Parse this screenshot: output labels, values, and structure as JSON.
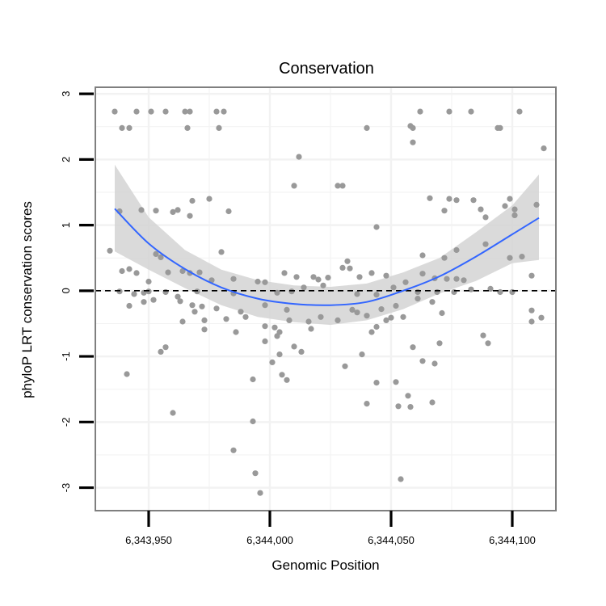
{
  "chart_data": {
    "type": "scatter",
    "title": "Conservation",
    "xlabel": "Genomic Position",
    "ylabel": "phyloP LRT conservation scores",
    "xlim": [
      6343928,
      6344118
    ],
    "ylim": [
      -3.35,
      3.1
    ],
    "x_ticks": [
      6343950,
      6344000,
      6344050,
      6344100
    ],
    "x_tick_labels": [
      "6,343,950",
      "6,344,000",
      "6,344,050",
      "6,344,100"
    ],
    "y_ticks": [
      -3,
      -2,
      -1,
      0,
      1,
      2,
      3
    ],
    "y_tick_labels": [
      "-3",
      "-2",
      "-1",
      "0",
      "1",
      "2",
      "3"
    ],
    "grid": true,
    "reference_line": {
      "y": 0,
      "style": "dashed",
      "color": "#000000"
    },
    "colors": {
      "points": "#999999",
      "smooth": "#3366FF",
      "ribbon": "#D3D3D3",
      "panel_border": "#7F7F7F",
      "grid": "#F2F2F2"
    },
    "smooth": {
      "method": "loess",
      "x": [
        6343936,
        6343950,
        6343965,
        6343980,
        6343995,
        6344010,
        6344025,
        6344040,
        6344055,
        6344070,
        6344085,
        6344100,
        6344111
      ],
      "y": [
        1.25,
        0.72,
        0.33,
        0.05,
        -0.12,
        -0.2,
        -0.22,
        -0.17,
        0.0,
        0.22,
        0.52,
        0.86,
        1.11
      ],
      "lower": [
        0.6,
        0.32,
        0.04,
        -0.22,
        -0.4,
        -0.48,
        -0.52,
        -0.45,
        -0.28,
        -0.04,
        0.15,
        0.42,
        0.47
      ],
      "upper": [
        1.92,
        1.12,
        0.62,
        0.32,
        0.16,
        0.08,
        0.06,
        0.11,
        0.28,
        0.5,
        0.89,
        1.3,
        1.77
      ]
    },
    "series": [
      {
        "name": "scores",
        "points": [
          [
            6343936,
            2.73
          ],
          [
            6343945,
            2.73
          ],
          [
            6343951,
            2.73
          ],
          [
            6343957,
            2.73
          ],
          [
            6343965,
            2.73
          ],
          [
            6343967,
            2.73
          ],
          [
            6343978,
            2.73
          ],
          [
            6343981,
            2.73
          ],
          [
            6344062,
            2.73
          ],
          [
            6344074,
            2.73
          ],
          [
            6344083,
            2.73
          ],
          [
            6344103,
            2.73
          ],
          [
            6343939,
            2.48
          ],
          [
            6343942,
            2.48
          ],
          [
            6343966,
            2.48
          ],
          [
            6343979,
            2.48
          ],
          [
            6344040,
            2.48
          ],
          [
            6344059,
            2.48
          ],
          [
            6344094,
            2.48
          ],
          [
            6344095,
            2.48
          ],
          [
            6344058,
            2.51
          ],
          [
            6344059,
            2.26
          ],
          [
            6344113,
            2.17
          ],
          [
            6344012,
            2.04
          ],
          [
            6344010,
            1.6
          ],
          [
            6344028,
            1.6
          ],
          [
            6344030,
            1.6
          ],
          [
            6343975,
            1.4
          ],
          [
            6343968,
            1.37
          ],
          [
            6344066,
            1.41
          ],
          [
            6344074,
            1.4
          ],
          [
            6344077,
            1.38
          ],
          [
            6344084,
            1.38
          ],
          [
            6344099,
            1.4
          ],
          [
            6344097,
            1.29
          ],
          [
            6344110,
            1.31
          ],
          [
            6344101,
            1.24
          ],
          [
            6343938,
            1.21
          ],
          [
            6343947,
            1.23
          ],
          [
            6343953,
            1.22
          ],
          [
            6343960,
            1.2
          ],
          [
            6343962,
            1.23
          ],
          [
            6343967,
            1.14
          ],
          [
            6343983,
            1.21
          ],
          [
            6344072,
            1.22
          ],
          [
            6344087,
            1.24
          ],
          [
            6344089,
            1.12
          ],
          [
            6344101,
            1.15
          ],
          [
            6344044,
            0.97
          ],
          [
            6343934,
            0.61
          ],
          [
            6343953,
            0.56
          ],
          [
            6343955,
            0.51
          ],
          [
            6343980,
            0.59
          ],
          [
            6344063,
            0.54
          ],
          [
            6344077,
            0.62
          ],
          [
            6344089,
            0.71
          ],
          [
            6344099,
            0.5
          ],
          [
            6344104,
            0.52
          ],
          [
            6344072,
            0.5
          ],
          [
            6344032,
            0.45
          ],
          [
            6343939,
            0.3
          ],
          [
            6343942,
            0.33
          ],
          [
            6343945,
            0.27
          ],
          [
            6343950,
            0.14
          ],
          [
            6343958,
            0.28
          ],
          [
            6343964,
            0.3
          ],
          [
            6343967,
            0.27
          ],
          [
            6343971,
            0.28
          ],
          [
            6343976,
            0.16
          ],
          [
            6343985,
            0.18
          ],
          [
            6343995,
            0.14
          ],
          [
            6344006,
            0.27
          ],
          [
            6344011,
            0.21
          ],
          [
            6344018,
            0.21
          ],
          [
            6344020,
            0.17
          ],
          [
            6344024,
            0.2
          ],
          [
            6344030,
            0.35
          ],
          [
            6344033,
            0.34
          ],
          [
            6344037,
            0.21
          ],
          [
            6344042,
            0.27
          ],
          [
            6344048,
            0.23
          ],
          [
            6344056,
            0.13
          ],
          [
            6344063,
            0.26
          ],
          [
            6344068,
            0.19
          ],
          [
            6344073,
            0.18
          ],
          [
            6344077,
            0.18
          ],
          [
            6344080,
            0.16
          ],
          [
            6344083,
            0.02
          ],
          [
            6344091,
            0.03
          ],
          [
            6344108,
            0.23
          ],
          [
            6343998,
            0.13
          ],
          [
            6343938,
            -0.01
          ],
          [
            6343944,
            -0.05
          ],
          [
            6343948,
            -0.03
          ],
          [
            6343950,
            -0.01
          ],
          [
            6343957,
            -0.02
          ],
          [
            6343962,
            -0.09
          ],
          [
            6343970,
            -0.01
          ],
          [
            6343985,
            -0.04
          ],
          [
            6344003,
            -0.03
          ],
          [
            6344009,
            -0.01
          ],
          [
            6344014,
            0.05
          ],
          [
            6344022,
            0.08
          ],
          [
            6344036,
            -0.05
          ],
          [
            6344044,
            -0.06
          ],
          [
            6344051,
            0.05
          ],
          [
            6344061,
            -0.02
          ],
          [
            6344069,
            -0.02
          ],
          [
            6344076,
            -0.02
          ],
          [
            6344095,
            -0.02
          ],
          [
            6344100,
            -0.02
          ],
          [
            6343942,
            -0.23
          ],
          [
            6343948,
            -0.17
          ],
          [
            6343952,
            -0.14
          ],
          [
            6343963,
            -0.16
          ],
          [
            6343968,
            -0.22
          ],
          [
            6343972,
            -0.24
          ],
          [
            6343978,
            -0.27
          ],
          [
            6343988,
            -0.32
          ],
          [
            6343998,
            -0.22
          ],
          [
            6344007,
            -0.29
          ],
          [
            6344034,
            -0.29
          ],
          [
            6344036,
            -0.33
          ],
          [
            6344046,
            -0.28
          ],
          [
            6344052,
            -0.23
          ],
          [
            6344061,
            -0.12
          ],
          [
            6344067,
            -0.17
          ],
          [
            6344071,
            -0.34
          ],
          [
            6344108,
            -0.3
          ],
          [
            6343964,
            -0.47
          ],
          [
            6343969,
            -0.32
          ],
          [
            6343973,
            -0.45
          ],
          [
            6343982,
            -0.43
          ],
          [
            6343990,
            -0.4
          ],
          [
            6343998,
            -0.54
          ],
          [
            6344003,
            -0.69
          ],
          [
            6344008,
            -0.45
          ],
          [
            6344010,
            -0.85
          ],
          [
            6344013,
            -0.93
          ],
          [
            6344016,
            -0.47
          ],
          [
            6344021,
            -0.4
          ],
          [
            6344028,
            -0.45
          ],
          [
            6344040,
            -0.38
          ],
          [
            6344044,
            -0.55
          ],
          [
            6344048,
            -0.45
          ],
          [
            6344050,
            -0.41
          ],
          [
            6344055,
            -0.4
          ],
          [
            6344108,
            -0.47
          ],
          [
            6344112,
            -0.41
          ],
          [
            6343973,
            -0.59
          ],
          [
            6343986,
            -0.63
          ],
          [
            6344002,
            -0.56
          ],
          [
            6344004,
            -0.63
          ],
          [
            6344017,
            -0.58
          ],
          [
            6344042,
            -0.63
          ],
          [
            6344088,
            -0.68
          ],
          [
            6344090,
            -0.8
          ],
          [
            6344070,
            -0.8
          ],
          [
            6343998,
            -0.77
          ],
          [
            6343955,
            -0.93
          ],
          [
            6343957,
            -0.86
          ],
          [
            6344004,
            -0.97
          ],
          [
            6344031,
            -1.15
          ],
          [
            6344038,
            -0.97
          ],
          [
            6344059,
            -0.86
          ],
          [
            6344068,
            -1.11
          ],
          [
            6344063,
            -1.07
          ],
          [
            6344001,
            -1.09
          ],
          [
            6344005,
            -1.28
          ],
          [
            6344007,
            -1.36
          ],
          [
            6343941,
            -1.27
          ],
          [
            6343993,
            -1.35
          ],
          [
            6344044,
            -1.4
          ],
          [
            6344052,
            -1.39
          ],
          [
            6344040,
            -1.72
          ],
          [
            6344053,
            -1.76
          ],
          [
            6344057,
            -1.6
          ],
          [
            6344058,
            -1.77
          ],
          [
            6344067,
            -1.7
          ],
          [
            6343960,
            -1.86
          ],
          [
            6343993,
            -1.99
          ],
          [
            6343985,
            -2.43
          ],
          [
            6343994,
            -2.78
          ],
          [
            6343996,
            -3.08
          ],
          [
            6344054,
            -2.87
          ]
        ]
      }
    ]
  }
}
